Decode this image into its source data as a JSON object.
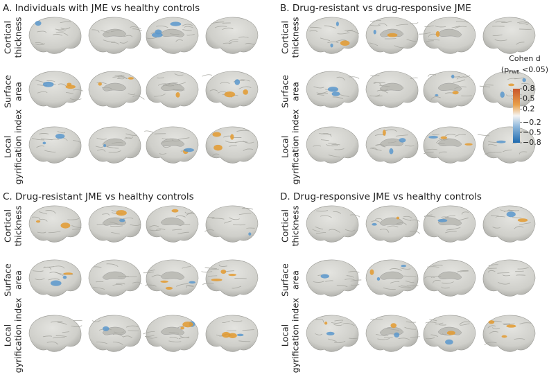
{
  "panels": [
    {
      "title": "A. Individuals with JME vs healthy controls",
      "rows": [
        [
          "Cortical",
          "thickness"
        ],
        [
          "Surface",
          "area"
        ],
        [
          "Local",
          "gyrification index"
        ]
      ]
    },
    {
      "title": "B. Drug-resistant vs drug-responsive JME",
      "rows": [
        [
          "Cortical",
          "thickness"
        ],
        [
          "Surface",
          "area"
        ],
        [
          "Local",
          "gyrification index"
        ]
      ]
    },
    {
      "title": "C. Drug-resistant JME vs healthy controls",
      "rows": [
        [
          "Cortical",
          "thickness"
        ],
        [
          "Surface",
          "area"
        ],
        [
          "Local",
          "gyrification index"
        ]
      ]
    },
    {
      "title": "D. Drug-responsive JME vs healthy controls",
      "rows": [
        [
          "Cortical",
          "thickness"
        ],
        [
          "Surface",
          "area"
        ],
        [
          "Local",
          "gyrification index"
        ]
      ]
    }
  ],
  "colorbar": {
    "title": "Cohen d",
    "subtitle_open": "(p",
    "subtitle_sub": "FWE",
    "subtitle_close": " <0.05)",
    "range": [
      -0.8,
      0.8
    ],
    "ticks": [
      {
        "value": 0.8,
        "label": "0.8"
      },
      {
        "value": 0.5,
        "label": "0.5"
      },
      {
        "value": 0.2,
        "label": "0.2"
      },
      {
        "value": -0.2,
        "label": "−0.2"
      },
      {
        "value": -0.5,
        "label": "−0.5"
      },
      {
        "value": -0.8,
        "label": "−0.8"
      }
    ]
  }
}
